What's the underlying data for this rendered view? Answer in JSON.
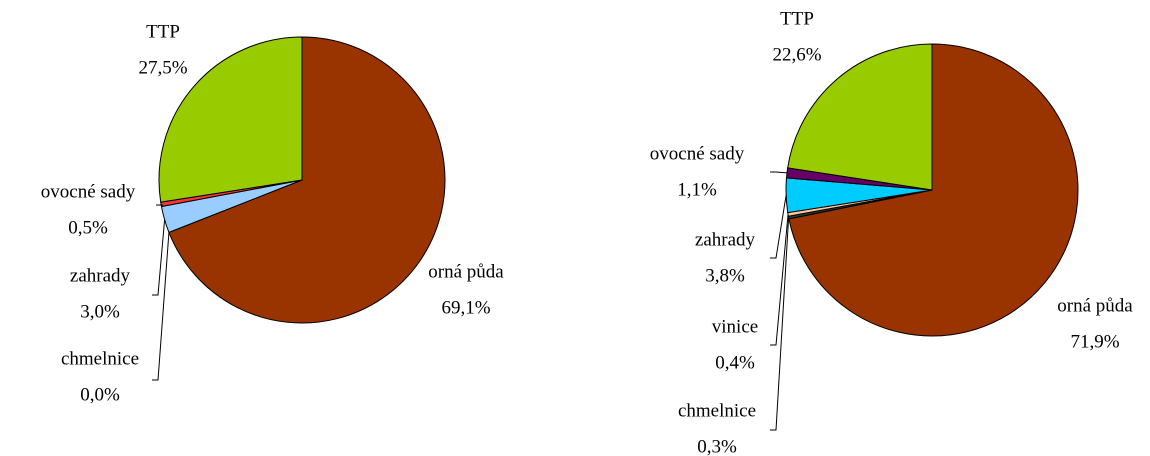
{
  "chart_data": [
    {
      "type": "pie",
      "categories": [
        "orná půda",
        "chmelnice",
        "zahrady",
        "ovocné sady",
        "TTP"
      ],
      "values": [
        69.1,
        0.0,
        3.0,
        0.5,
        27.5
      ],
      "value_labels": [
        "69,1%",
        "0,0%",
        "3,0%",
        "0,5%",
        "27,5%"
      ],
      "colors": [
        "#993300",
        "#666699",
        "#99ccff",
        "#ff3333",
        "#99cc00"
      ]
    },
    {
      "type": "pie",
      "categories": [
        "orná půda",
        "chmelnice",
        "vinice",
        "zahrady",
        "ovocné sady",
        "TTP"
      ],
      "values": [
        71.9,
        0.3,
        0.4,
        3.8,
        1.1,
        22.6
      ],
      "value_labels": [
        "71,9%",
        "0,3%",
        "0,4%",
        "3,8%",
        "1,1%",
        "22,6%"
      ],
      "colors": [
        "#993300",
        "#333333",
        "#ffcc99",
        "#00ccff",
        "#660066",
        "#99cc00"
      ]
    }
  ]
}
